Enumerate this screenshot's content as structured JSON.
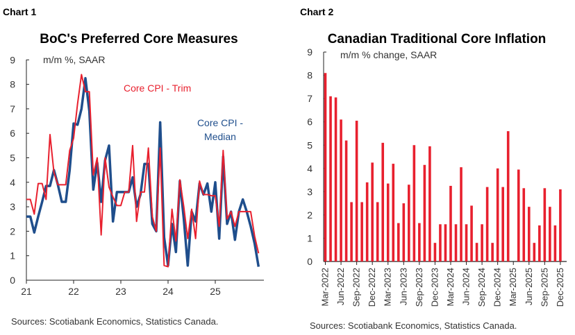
{
  "chart_data": [
    {
      "type": "line",
      "panel_label": "Chart 1",
      "title": "BoC's Preferred Core Measures",
      "ylabel": "m/m %, SAAR",
      "ylim": [
        0,
        9
      ],
      "yticks": [
        0,
        1,
        2,
        3,
        4,
        5,
        6,
        7,
        8,
        9
      ],
      "xticks": [
        "21",
        "22",
        "23",
        "24",
        "25"
      ],
      "x_start": "2021-01",
      "x_freq": "monthly",
      "series": [
        {
          "name": "Core CPI - Trim",
          "color": "#e8202e",
          "values": [
            3.3,
            3.3,
            2.7,
            3.95,
            3.95,
            3.3,
            5.95,
            4.4,
            3.9,
            3.9,
            3.9,
            5.3,
            5.8,
            7.2,
            8.4,
            7.7,
            7.7,
            4.3,
            5.0,
            1.85,
            5.0,
            3.8,
            3.4,
            3.05,
            3.05,
            3.6,
            3.6,
            5.5,
            2.4,
            3.6,
            3.6,
            5.4,
            2.6,
            2.0,
            5.4,
            0.6,
            0.55,
            2.9,
            1.6,
            4.1,
            3.0,
            1.7,
            2.9,
            1.7,
            4.05,
            3.5,
            3.5,
            3.45,
            3.45,
            2.2,
            5.3,
            2.5,
            2.8,
            2.2,
            2.8,
            2.8,
            2.8,
            2.8,
            1.8,
            1.1
          ]
        },
        {
          "name": "Core CPI - Median",
          "name_lines": [
            "Core CPI -",
            "Median"
          ],
          "color": "#1f4e8c",
          "values": [
            2.6,
            2.6,
            1.95,
            2.6,
            3.2,
            3.85,
            3.85,
            4.5,
            3.9,
            3.2,
            3.2,
            4.5,
            6.4,
            6.35,
            7.0,
            8.25,
            6.9,
            3.7,
            4.8,
            3.2,
            4.9,
            5.5,
            2.4,
            3.6,
            3.6,
            3.6,
            3.6,
            4.2,
            3.0,
            3.5,
            4.75,
            4.75,
            2.3,
            2.0,
            6.45,
            1.75,
            0.6,
            2.3,
            1.15,
            4.05,
            2.5,
            0.6,
            2.8,
            2.4,
            3.95,
            3.5,
            3.95,
            2.8,
            4.0,
            1.7,
            5.05,
            2.3,
            2.8,
            1.65,
            2.8,
            3.3,
            2.8,
            2.2,
            1.5,
            0.55
          ]
        }
      ],
      "source": "Sources: Scotiabank Economics, Statistics Canada."
    },
    {
      "type": "bar",
      "panel_label": "Chart 2",
      "title": "Canadian Traditional Core Inflation",
      "ylabel": "m/m % change, SAAR",
      "ylim": [
        0,
        9
      ],
      "yticks": [
        0,
        1,
        2,
        3,
        4,
        5,
        6,
        7,
        8,
        9
      ],
      "color": "#e8202e",
      "x_start": "2022-03",
      "x_freq": "monthly",
      "xticks": [
        "Mar-2022",
        "Jun-2022",
        "Sep-2022",
        "Dec-2022",
        "Mar-2023",
        "Jun-2023",
        "Sep-2023",
        "Dec-2023",
        "Mar-2024",
        "Jun-2024",
        "Sep-2024",
        "Dec-2024",
        "Mar-2025",
        "Jun-2025",
        "Sep-2025",
        "Dec-2025"
      ],
      "values": [
        8.1,
        7.1,
        7.05,
        6.1,
        5.2,
        2.55,
        6.05,
        2.55,
        3.4,
        4.25,
        2.55,
        5.1,
        3.35,
        4.2,
        1.65,
        2.5,
        3.3,
        5.0,
        1.65,
        4.15,
        4.95,
        0.8,
        1.6,
        1.6,
        3.25,
        1.6,
        4.05,
        1.6,
        2.4,
        0.8,
        1.6,
        3.2,
        0.8,
        4.0,
        3.2,
        5.6,
        0,
        3.95,
        3.15,
        2.35,
        0.8,
        1.55,
        3.15,
        2.35,
        1.55,
        3.1
      ],
      "source": "Sources: Scotiabank Economics, Statistics Canada."
    }
  ]
}
